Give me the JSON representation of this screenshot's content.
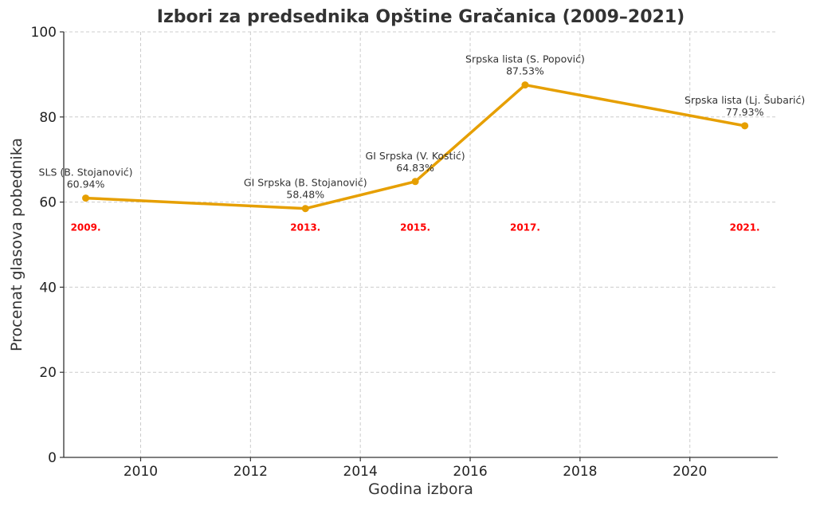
{
  "chart_data": {
    "type": "line",
    "title": "Izbori za predsednika Opštine Gračanica (2009–2021)",
    "xlabel": "Godina izbora",
    "ylabel": "Procenat glasova pobednika",
    "xlim": [
      2008.6,
      2021.6
    ],
    "ylim": [
      0,
      100
    ],
    "xticks": [
      2010,
      2012,
      2014,
      2016,
      2018,
      2020
    ],
    "yticks": [
      0,
      20,
      40,
      60,
      80,
      100
    ],
    "grid": true,
    "line_color": "#E69F00",
    "year_label_color": "#FF0000",
    "year_label_y": 54,
    "points": [
      {
        "x": 2009,
        "y": 60.94,
        "name": "SLS (B. Stojanović)",
        "value_label": "60.94%",
        "year_label": "2009."
      },
      {
        "x": 2013,
        "y": 58.48,
        "name": "GI Srpska (B. Stojanović)",
        "value_label": "58.48%",
        "year_label": "2013."
      },
      {
        "x": 2015,
        "y": 64.83,
        "name": "GI Srpska (V. Kostić)",
        "value_label": "64.83%",
        "year_label": "2015."
      },
      {
        "x": 2017,
        "y": 87.53,
        "name": "Srpska lista (S. Popović)",
        "value_label": "87.53%",
        "year_label": "2017."
      },
      {
        "x": 2021,
        "y": 77.93,
        "name": "Srpska lista (Lj. Šubarić)",
        "value_label": "77.93%",
        "year_label": "2021."
      }
    ]
  }
}
